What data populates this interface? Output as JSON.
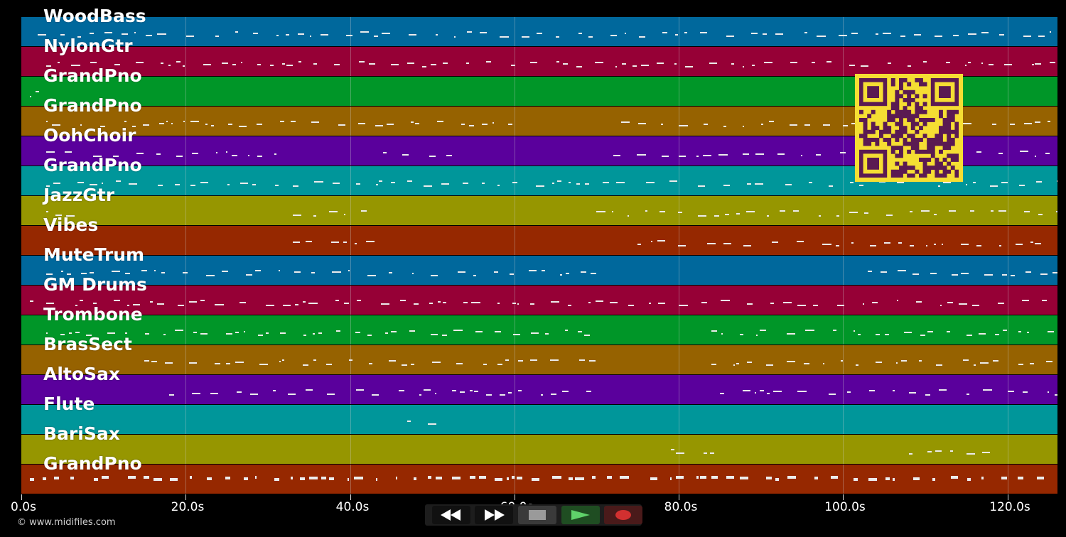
{
  "tracks": [
    {
      "label": "WoodBass",
      "color": "#00689c"
    },
    {
      "label": "NylonGtr",
      "color": "#960036"
    },
    {
      "label": "GrandPno",
      "color": "#009628"
    },
    {
      "label": "GrandPno",
      "color": "#966200"
    },
    {
      "label": "OohChoir",
      "color": "#5a009c"
    },
    {
      "label": "GrandPno",
      "color": "#00969a"
    },
    {
      "label": "JazzGtr",
      "color": "#969600"
    },
    {
      "label": "Vibes",
      "color": "#962800"
    },
    {
      "label": "MuteTrum",
      "color": "#00689c"
    },
    {
      "label": "GM Drums",
      "color": "#960036"
    },
    {
      "label": "Trombone",
      "color": "#009628"
    },
    {
      "label": "BrasSect",
      "color": "#966200"
    },
    {
      "label": "AltoSax",
      "color": "#5a009c"
    },
    {
      "label": "Flute",
      "color": "#00969a"
    },
    {
      "label": "BariSax",
      "color": "#969600"
    },
    {
      "label": "GrandPno",
      "color": "#962800"
    }
  ],
  "timeline": {
    "ticks": [
      "0.0s",
      "20.0s",
      "40.0s",
      "60.0s",
      "80.0s",
      "100.0s",
      "120.0s"
    ],
    "max_seconds": 126
  },
  "transport": {
    "rewind": "rewind-icon",
    "fast_forward": "fast-forward-icon",
    "stop": "stop-icon",
    "play": "play-icon",
    "record": "record-icon"
  },
  "copyright": "© www.midifiles.com",
  "qr_code": "qr-code"
}
